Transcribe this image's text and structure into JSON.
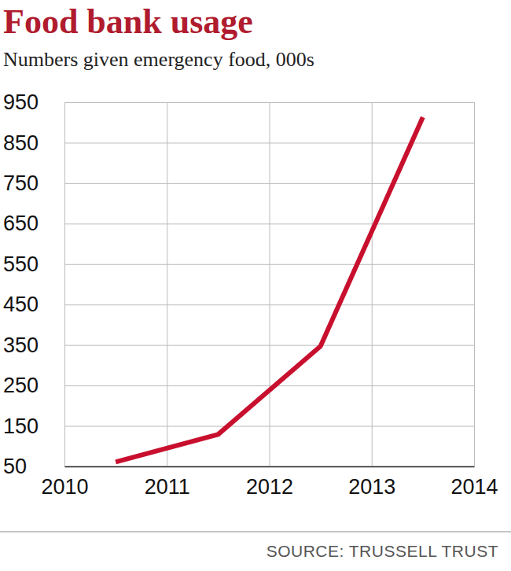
{
  "chart_data": {
    "type": "line",
    "title": "Food bank usage",
    "subtitle": "Numbers given emergency food, 000s",
    "source": "SOURCE: TRUSSELL TRUST",
    "x": [
      2010.5,
      2011.5,
      2012.5,
      2013.5
    ],
    "values": [
      61,
      129,
      347,
      913
    ],
    "color": "#c8102e",
    "xlim": [
      2010,
      2014
    ],
    "xticks": [
      2010,
      2011,
      2012,
      2013,
      2014
    ],
    "ylim": [
      50,
      950
    ],
    "yticks": [
      50,
      150,
      250,
      350,
      450,
      550,
      650,
      750,
      850,
      950
    ],
    "grid": true
  }
}
